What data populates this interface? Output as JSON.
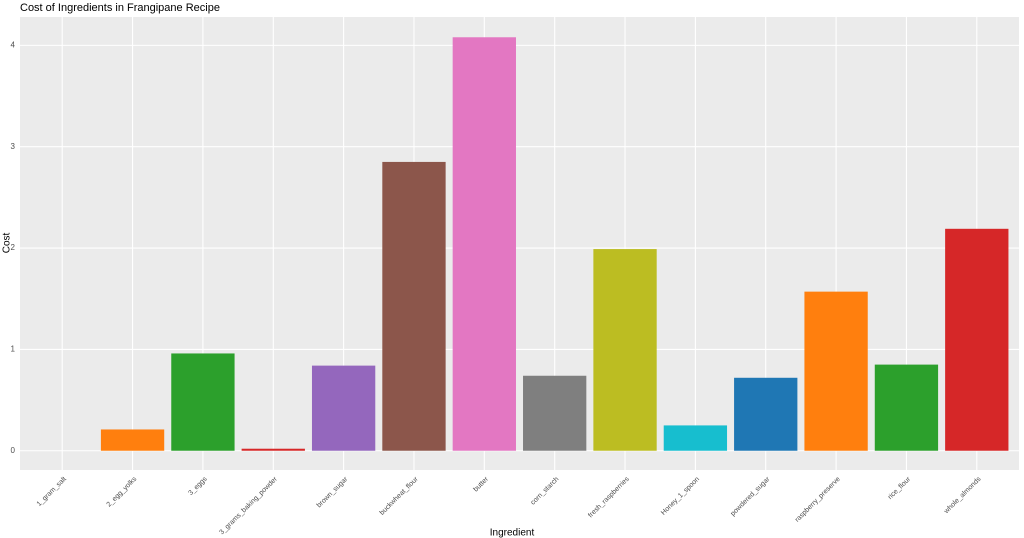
{
  "chart_data": {
    "type": "bar",
    "title": "Cost of Ingredients in Frangipane Recipe",
    "x_label": "Ingredient",
    "y_label": "Cost",
    "categories": [
      "1_gram_salt",
      "2_egg_yolks",
      "3_eggs",
      "3_grams_baking_powder",
      "brown_sugar",
      "buckwheat_flour",
      "butter",
      "corn_starch",
      "fresh_raspberries",
      "Honey_1_spoon",
      "powdered_sugar",
      "raspberry_preserve",
      "rice_flour",
      "whole_almonds"
    ],
    "values": [
      0,
      0.21,
      0.96,
      0.02,
      0.84,
      2.85,
      4.08,
      0.74,
      1.99,
      0.25,
      0.72,
      1.57,
      0.85,
      2.19
    ],
    "colors": [
      "#1f77b4",
      "#ff7f0e",
      "#2ca02c",
      "#d62728",
      "#9467bd",
      "#8c564b",
      "#e377c2",
      "#7f7f7f",
      "#bcbd22",
      "#17becf",
      "#1f77b4",
      "#ff7f0e",
      "#2ca02c",
      "#d62728"
    ],
    "ylim": [
      -0.19,
      4.28
    ],
    "yticks": [
      0,
      1,
      2,
      3,
      4
    ],
    "grid": true
  }
}
